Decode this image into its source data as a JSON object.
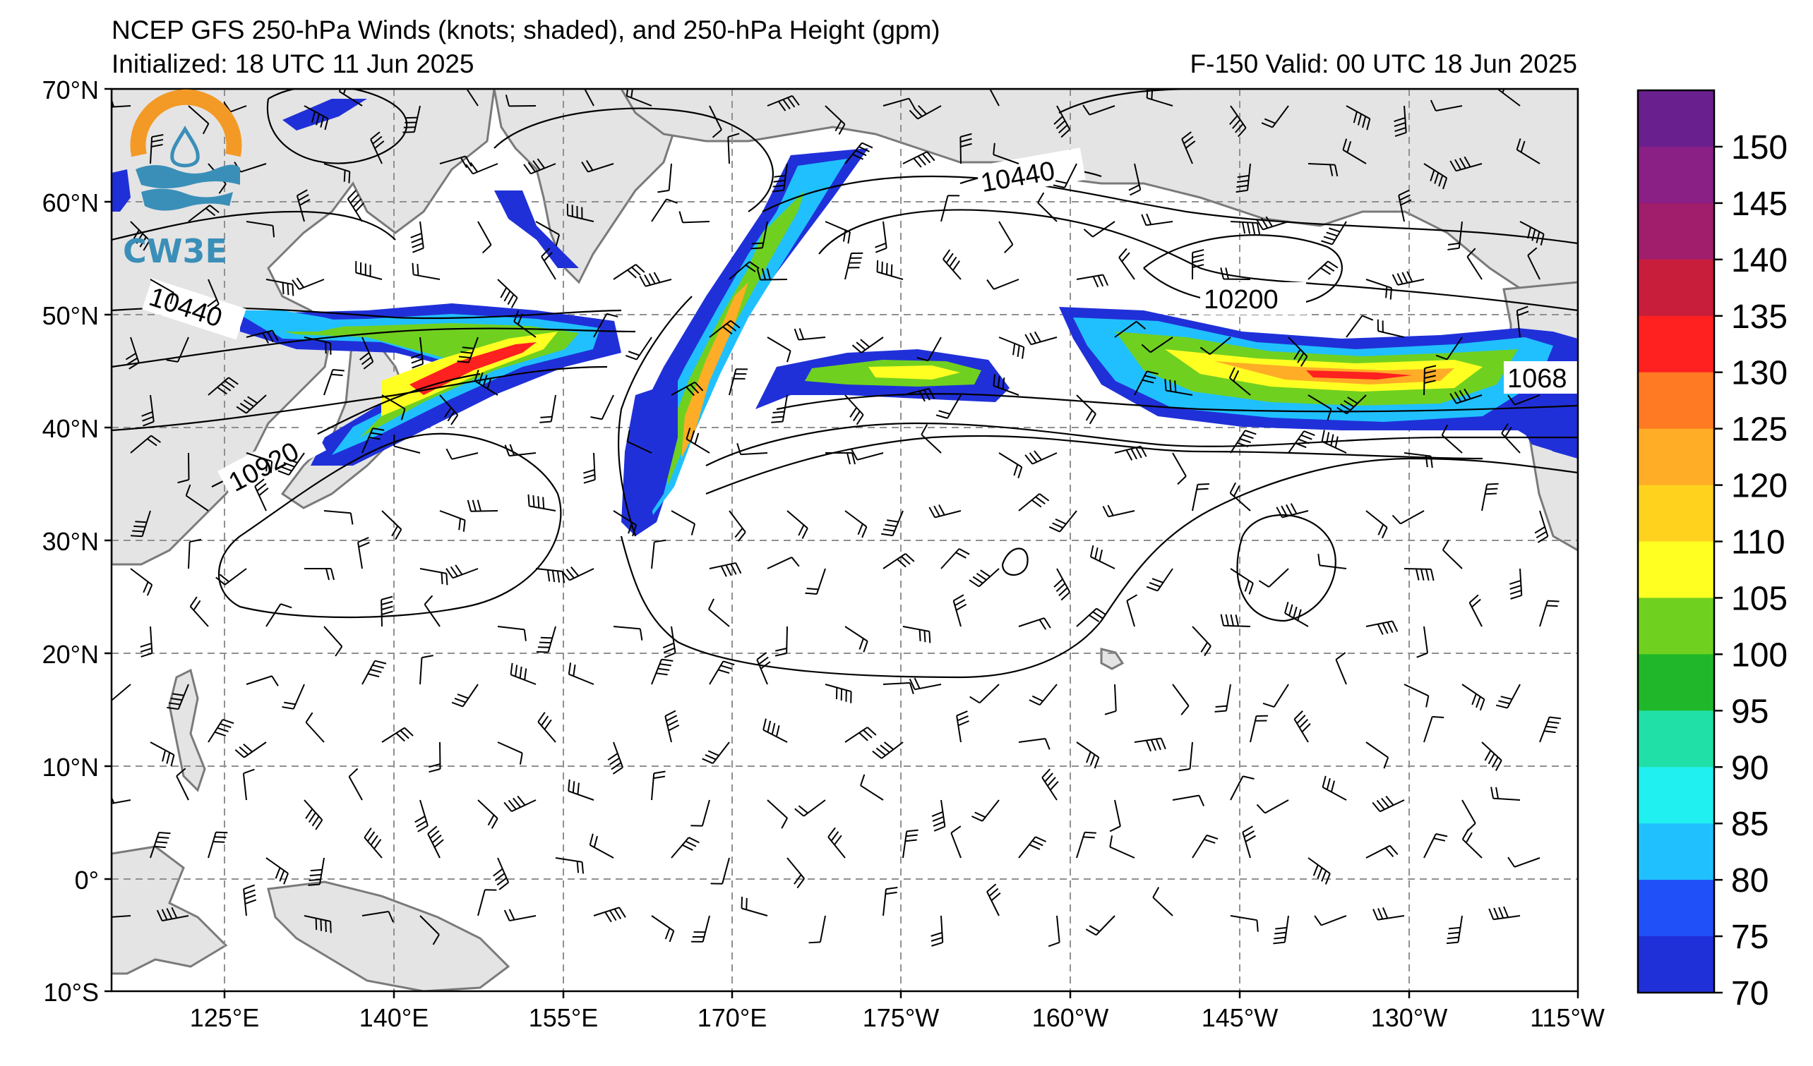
{
  "header": {
    "title": "NCEP GFS 250-hPa Winds (knots; shaded), and 250-hPa Height (gpm)",
    "initialized": "Initialized: 18 UTC 11 Jun 2025",
    "valid": "F-150  Valid: 00 UTC 18 Jun 2025"
  },
  "logo": {
    "text": "CW3E"
  },
  "axes": {
    "lat_labels": [
      "70°N",
      "60°N",
      "50°N",
      "40°N",
      "30°N",
      "20°N",
      "10°N",
      "0°",
      "10°S"
    ],
    "lon_labels": [
      "125°E",
      "140°E",
      "155°E",
      "170°E",
      "175°W",
      "160°W",
      "145°W",
      "130°W",
      "115°W"
    ]
  },
  "contour_labels": [
    "10440",
    "10440",
    "10200",
    "10920",
    "1068"
  ],
  "colorbar": {
    "ticks": [
      "150",
      "145",
      "140",
      "135",
      "130",
      "125",
      "120",
      "110",
      "105",
      "100",
      "95",
      "90",
      "85",
      "80",
      "75",
      "70"
    ],
    "colors": [
      "#6a1f8f",
      "#8a1f86",
      "#a01e6c",
      "#c81e3c",
      "#ff2020",
      "#ff7a22",
      "#ffad26",
      "#ffd21e",
      "#ffff22",
      "#70d020",
      "#20b82a",
      "#20e0a8",
      "#20f0f0",
      "#20c0ff",
      "#2050f8",
      "#2030d8"
    ]
  },
  "style": {
    "land": "#e4e4e4",
    "coast": "#7a7a7a",
    "grid": "#909090",
    "logo_orange": "#f39a26",
    "logo_blue": "#3a8fb8"
  }
}
